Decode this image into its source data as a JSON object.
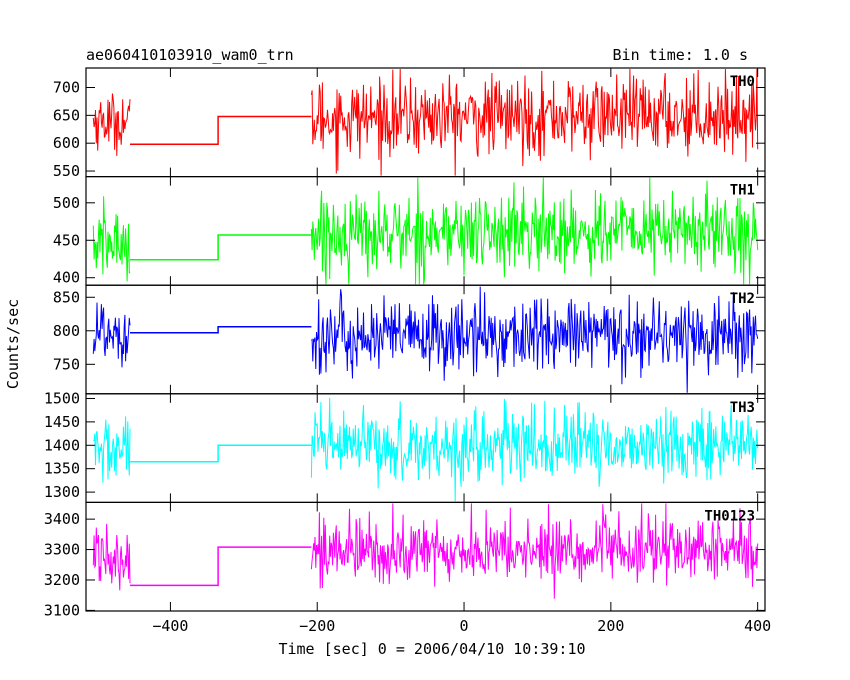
{
  "chart_data": {
    "type": "line",
    "title": "ae060410103910_wam0_trn",
    "bin_time": "Bin time: 1.0 s",
    "xlabel": "Time [sec] 0 = 2006/04/10 10:39:10",
    "ylabel": "Counts/sec",
    "xlim": [
      -515,
      410
    ],
    "x_ticks": [
      -400,
      -200,
      0,
      200,
      400
    ],
    "x_tick_labels": [
      "−400",
      "−200",
      "0",
      "200",
      "400"
    ],
    "panels": [
      {
        "name": "TH0",
        "color": "#ff0000",
        "ylim": [
          540,
          735
        ],
        "y_ticks": [
          550,
          600,
          650,
          700
        ],
        "mean_before_gap": 640,
        "noise_before_gap": 25,
        "steps": [
          {
            "from": -455,
            "to": -335,
            "value": 598
          },
          {
            "from": -335,
            "to": -208,
            "value": 648
          }
        ],
        "mean_after_gap": 645,
        "noise_after_gap": 35
      },
      {
        "name": "TH1",
        "color": "#00ff00",
        "ylim": [
          390,
          535
        ],
        "y_ticks": [
          400,
          450,
          500
        ],
        "mean_before_gap": 445,
        "noise_before_gap": 25,
        "steps": [
          {
            "from": -455,
            "to": -335,
            "value": 424
          },
          {
            "from": -335,
            "to": -208,
            "value": 457
          }
        ],
        "mean_after_gap": 458,
        "noise_after_gap": 27
      },
      {
        "name": "TH2",
        "color": "#0000ff",
        "ylim": [
          706,
          868
        ],
        "y_ticks": [
          750,
          800,
          850
        ],
        "mean_before_gap": 800,
        "noise_before_gap": 30,
        "steps": [
          {
            "from": -455,
            "to": -335,
            "value": 797
          },
          {
            "from": -335,
            "to": -208,
            "value": 806
          }
        ],
        "mean_after_gap": 790,
        "noise_after_gap": 28
      },
      {
        "name": "TH3",
        "color": "#00ffff",
        "ylim": [
          1278,
          1510
        ],
        "y_ticks": [
          1300,
          1350,
          1400,
          1450,
          1500
        ],
        "mean_before_gap": 1390,
        "noise_before_gap": 38,
        "steps": [
          {
            "from": -455,
            "to": -335,
            "value": 1365
          },
          {
            "from": -335,
            "to": -208,
            "value": 1400
          }
        ],
        "mean_after_gap": 1395,
        "noise_after_gap": 38
      },
      {
        "name": "TH0123",
        "color": "#ff00ff",
        "ylim": [
          3098,
          3455
        ],
        "y_ticks": [
          3100,
          3200,
          3300,
          3400
        ],
        "mean_before_gap": 3290,
        "noise_before_gap": 55,
        "steps": [
          {
            "from": -455,
            "to": -335,
            "value": 3182
          },
          {
            "from": -335,
            "to": -208,
            "value": 3308
          }
        ],
        "mean_after_gap": 3290,
        "noise_after_gap": 55
      }
    ],
    "segments": {
      "before_gap": [
        -505,
        -455
      ],
      "after_gap": [
        -208,
        400
      ]
    },
    "grid": false
  }
}
